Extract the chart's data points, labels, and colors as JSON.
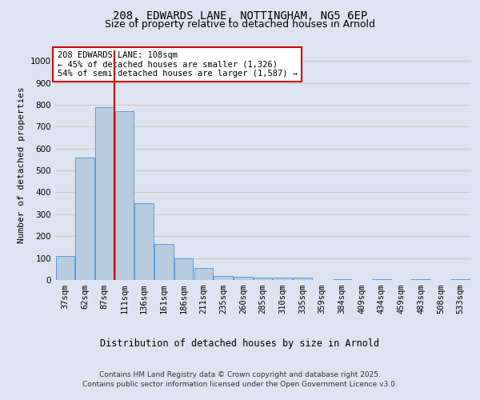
{
  "title1": "208, EDWARDS LANE, NOTTINGHAM, NG5 6EP",
  "title2": "Size of property relative to detached houses in Arnold",
  "xlabel": "Distribution of detached houses by size in Arnold",
  "ylabel": "Number of detached properties",
  "categories": [
    "37sqm",
    "62sqm",
    "87sqm",
    "111sqm",
    "136sqm",
    "161sqm",
    "186sqm",
    "211sqm",
    "235sqm",
    "260sqm",
    "285sqm",
    "310sqm",
    "335sqm",
    "359sqm",
    "384sqm",
    "409sqm",
    "434sqm",
    "459sqm",
    "483sqm",
    "508sqm",
    "533sqm"
  ],
  "values": [
    110,
    560,
    790,
    770,
    350,
    165,
    100,
    55,
    20,
    13,
    10,
    10,
    10,
    0,
    5,
    0,
    5,
    0,
    5,
    0,
    5
  ],
  "bar_color": "#b8ccdf",
  "bar_edge_color": "#5b9bd5",
  "red_line_index": 3,
  "red_line_label": "208 EDWARDS LANE: 108sqm",
  "annotation_line2": "← 45% of detached houses are smaller (1,326)",
  "annotation_line3": "54% of semi-detached houses are larger (1,587) →",
  "annotation_box_color": "#ffffff",
  "annotation_box_edge": "#cc0000",
  "red_line_color": "#cc0000",
  "ylim": [
    0,
    1050
  ],
  "yticks": [
    0,
    100,
    200,
    300,
    400,
    500,
    600,
    700,
    800,
    900,
    1000
  ],
  "grid_color": "#cccccc",
  "bg_color": "#dde4f0",
  "plot_bg_color": "#dde4f0",
  "footer1": "Contains HM Land Registry data © Crown copyright and database right 2025.",
  "footer2": "Contains public sector information licensed under the Open Government Licence v3.0.",
  "title1_fontsize": 10,
  "title2_fontsize": 9,
  "xlabel_fontsize": 8.5,
  "ylabel_fontsize": 8,
  "tick_fontsize": 7.5,
  "annotation_fontsize": 7.5,
  "footer_fontsize": 6.5
}
